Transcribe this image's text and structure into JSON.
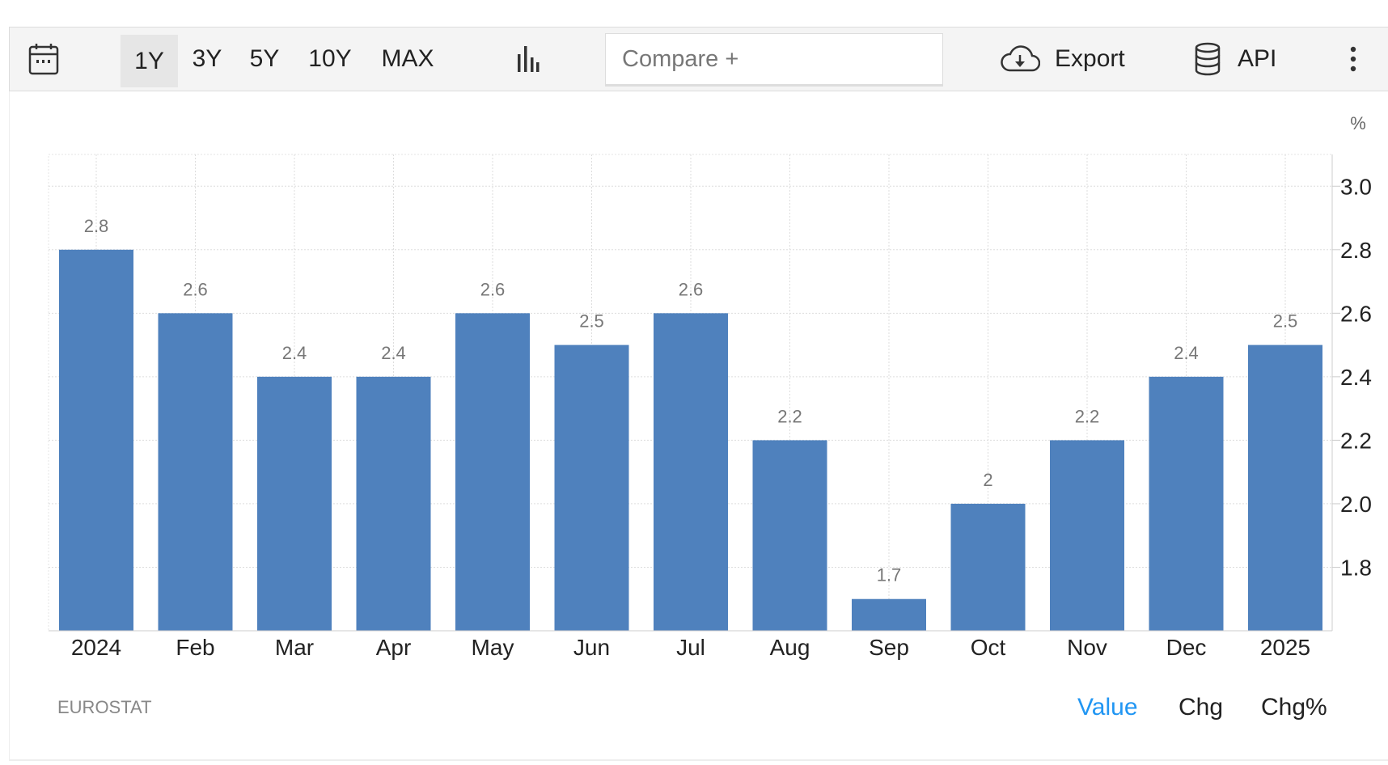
{
  "toolbar": {
    "ranges": [
      "1Y",
      "3Y",
      "5Y",
      "10Y",
      "MAX"
    ],
    "active_range": "1Y",
    "compare_placeholder": "Compare +",
    "export_label": "Export",
    "api_label": "API"
  },
  "footer": {
    "source": "EUROSTAT",
    "modes": [
      "Value",
      "Chg",
      "Chg%"
    ],
    "active_mode": "Value"
  },
  "colors": {
    "bar": "#4f81bd",
    "active_link": "#2196f3"
  },
  "chart_data": {
    "type": "bar",
    "categories": [
      "2024",
      "Feb",
      "Mar",
      "Apr",
      "May",
      "Jun",
      "Jul",
      "Aug",
      "Sep",
      "Oct",
      "Nov",
      "Dec",
      "2025"
    ],
    "values": [
      2.8,
      2.6,
      2.4,
      2.4,
      2.6,
      2.5,
      2.6,
      2.2,
      1.7,
      2,
      2.2,
      2.4,
      2.5
    ],
    "data_labels": [
      "2.8",
      "2.6",
      "2.4",
      "2.4",
      "2.6",
      "2.5",
      "2.6",
      "2.2",
      "1.7",
      "2",
      "2.2",
      "2.4",
      "2.5"
    ],
    "yticks": [
      "1.8",
      "2.0",
      "2.2",
      "2.4",
      "2.6",
      "2.8",
      "3.0"
    ],
    "ylabel": "%",
    "ylim": [
      1.6,
      3.1
    ],
    "grid": true,
    "y_axis_side": "right"
  }
}
